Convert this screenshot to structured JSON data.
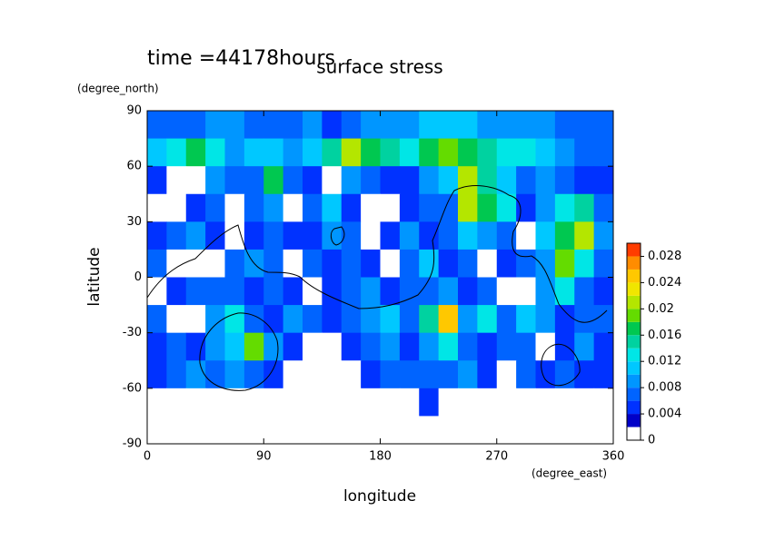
{
  "chart_data": {
    "type": "contourf",
    "title": "surface stress",
    "subtitle": "time =44178hours",
    "x_label": "longitude",
    "x_units": "(degree_east)",
    "y_label": "latitude",
    "y_units": "(degree_north)",
    "xlim": [
      0,
      360
    ],
    "ylim": [
      -90,
      90
    ],
    "xticks": [
      0,
      90,
      180,
      270,
      360
    ],
    "yticks": [
      -90,
      -60,
      -30,
      0,
      30,
      60,
      90
    ],
    "x": [
      7.5,
      22.5,
      37.5,
      52.5,
      67.5,
      82.5,
      97.5,
      112.5,
      127.5,
      142.5,
      157.5,
      172.5,
      187.5,
      202.5,
      217.5,
      232.5,
      247.5,
      262.5,
      277.5,
      292.5,
      307.5,
      322.5,
      337.5,
      352.5
    ],
    "y": [
      82.5,
      67.5,
      52.5,
      37.5,
      22.5,
      7.5,
      -7.5,
      -22.5,
      -37.5,
      -52.5,
      -67.5,
      -82.5
    ],
    "z": [
      [
        0.006,
        0.006,
        0.006,
        0.008,
        0.008,
        0.006,
        0.006,
        0.006,
        0.008,
        0.004,
        0.006,
        0.008,
        0.008,
        0.008,
        0.01,
        0.01,
        0.01,
        0.008,
        0.008,
        0.008,
        0.008,
        0.006,
        0.006,
        0.006
      ],
      [
        0.01,
        0.012,
        0.016,
        0.012,
        0.008,
        0.01,
        0.01,
        0.008,
        0.01,
        0.014,
        0.02,
        0.016,
        0.014,
        0.012,
        0.016,
        0.018,
        0.016,
        0.014,
        0.012,
        0.012,
        0.01,
        0.008,
        0.006,
        0.006
      ],
      [
        0.004,
        0.001,
        0.001,
        0.008,
        0.006,
        0.006,
        0.016,
        0.006,
        0.004,
        0.001,
        0.008,
        0.006,
        0.004,
        0.004,
        0.008,
        0.01,
        0.02,
        0.014,
        0.01,
        0.006,
        0.008,
        0.006,
        0.004,
        0.004
      ],
      [
        0.001,
        0.001,
        0.004,
        0.006,
        0.001,
        0.006,
        0.008,
        0.001,
        0.006,
        0.01,
        0.004,
        0.001,
        0.001,
        0.004,
        0.006,
        0.006,
        0.02,
        0.016,
        0.012,
        0.004,
        0.008,
        0.012,
        0.014,
        0.006
      ],
      [
        0.004,
        0.006,
        0.008,
        0.004,
        0.001,
        0.004,
        0.006,
        0.004,
        0.004,
        0.008,
        0.006,
        0.001,
        0.004,
        0.008,
        0.004,
        0.006,
        0.01,
        0.008,
        0.006,
        0.001,
        0.01,
        0.016,
        0.02,
        0.008
      ],
      [
        0.006,
        0.001,
        0.001,
        0.001,
        0.006,
        0.008,
        0.006,
        0.001,
        0.006,
        0.004,
        0.006,
        0.004,
        0.001,
        0.006,
        0.01,
        0.004,
        0.006,
        0.001,
        0.004,
        0.006,
        0.008,
        0.018,
        0.012,
        0.006
      ],
      [
        0.001,
        0.004,
        0.006,
        0.006,
        0.006,
        0.004,
        0.006,
        0.004,
        0.001,
        0.004,
        0.006,
        0.008,
        0.004,
        0.006,
        0.006,
        0.008,
        0.004,
        0.006,
        0.001,
        0.001,
        0.008,
        0.012,
        0.006,
        0.004
      ],
      [
        0.006,
        0.001,
        0.001,
        0.008,
        0.012,
        0.006,
        0.004,
        0.008,
        0.006,
        0.004,
        0.006,
        0.008,
        0.01,
        0.006,
        0.014,
        0.024,
        0.008,
        0.012,
        0.006,
        0.01,
        0.008,
        0.004,
        0.006,
        0.006
      ],
      [
        0.004,
        0.006,
        0.004,
        0.008,
        0.01,
        0.018,
        0.008,
        0.004,
        0.001,
        0.001,
        0.004,
        0.006,
        0.008,
        0.004,
        0.008,
        0.012,
        0.006,
        0.004,
        0.006,
        0.006,
        0.001,
        0.004,
        0.008,
        0.004
      ],
      [
        0.004,
        0.006,
        0.008,
        0.006,
        0.008,
        0.006,
        0.004,
        0.001,
        0.001,
        0.001,
        0.001,
        0.004,
        0.006,
        0.006,
        0.006,
        0.006,
        0.008,
        0.004,
        0.001,
        0.006,
        0.004,
        0.006,
        0.004,
        0.004
      ],
      [
        0,
        0,
        0,
        0,
        0,
        0,
        0,
        0,
        0,
        0,
        0,
        0,
        0,
        0,
        0.004,
        0,
        0,
        0,
        0,
        0,
        0,
        0,
        0,
        0
      ],
      [
        0,
        0,
        0,
        0,
        0,
        0,
        0,
        0,
        0,
        0,
        0,
        0,
        0,
        0,
        0,
        0,
        0,
        0,
        0,
        0,
        0,
        0,
        0,
        0
      ]
    ],
    "levels": [
      0,
      0.002,
      0.004,
      0.006,
      0.008,
      0.01,
      0.012,
      0.014,
      0.016,
      0.018,
      0.02,
      0.022,
      0.024,
      0.026,
      0.028,
      0.03
    ],
    "colors": [
      "#ffffff",
      "#0000c8",
      "#0032ff",
      "#0064ff",
      "#0096ff",
      "#00c8ff",
      "#00e6e6",
      "#00d2a0",
      "#00c850",
      "#64dc00",
      "#b4e600",
      "#f0e600",
      "#ffc800",
      "#ff8c00",
      "#ff3c00"
    ],
    "colorbar_ticks": [
      0,
      0.004,
      0.008,
      0.012,
      0.016,
      0.02,
      0.024,
      0.028
    ]
  }
}
